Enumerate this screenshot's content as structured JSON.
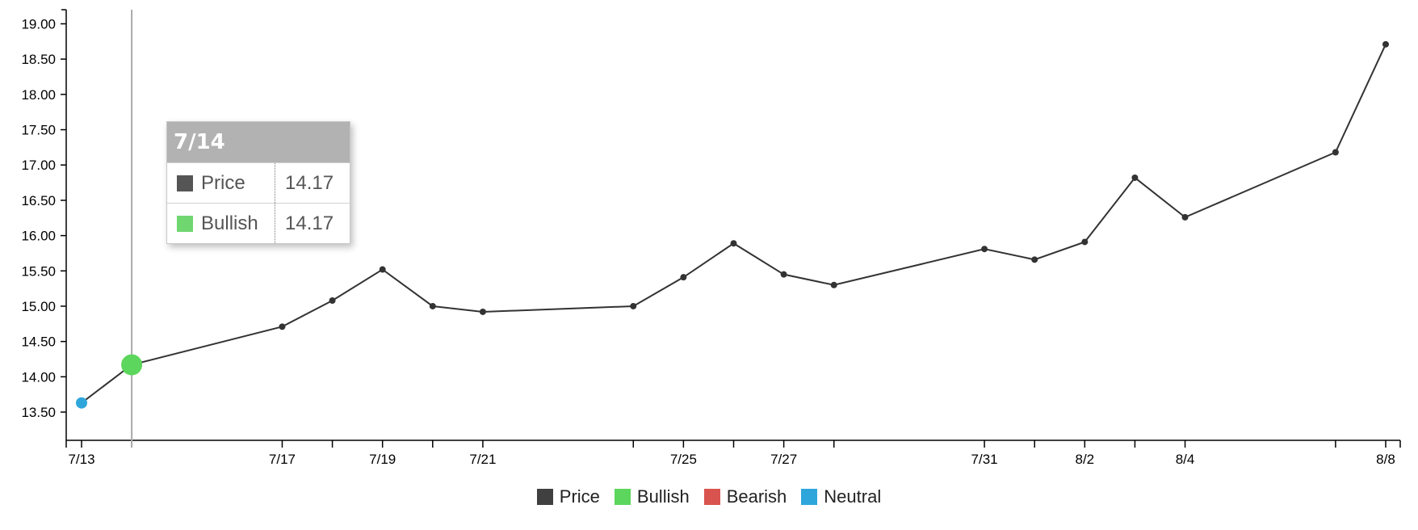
{
  "chart_data": {
    "type": "line",
    "x": [
      "7/13",
      "7/14",
      "7/17",
      "7/18",
      "7/19",
      "7/20",
      "7/21",
      "7/24",
      "7/25",
      "7/26",
      "7/27",
      "7/28",
      "7/31",
      "8/1",
      "8/2",
      "8/3",
      "8/4",
      "8/7",
      "8/8"
    ],
    "x_tick_labels": [
      "7/13",
      "7/17",
      "7/19",
      "7/21",
      "7/25",
      "7/27",
      "7/31",
      "8/2",
      "8/4",
      "8/8"
    ],
    "series": [
      {
        "name": "Price",
        "color": "#333333",
        "values": [
          13.63,
          14.17,
          14.71,
          15.08,
          15.52,
          15.0,
          14.92,
          15.0,
          15.41,
          15.89,
          15.45,
          15.3,
          15.81,
          15.66,
          15.91,
          16.82,
          16.26,
          17.18,
          18.71
        ]
      }
    ],
    "sentiment_points": [
      {
        "x": "7/13",
        "y": 13.63,
        "sentiment": "Neutral"
      },
      {
        "x": "7/14",
        "y": 14.17,
        "sentiment": "Bullish"
      }
    ],
    "y_ticks": [
      "13.50",
      "14.00",
      "14.50",
      "15.00",
      "15.50",
      "16.00",
      "16.50",
      "17.00",
      "17.50",
      "18.00",
      "18.50",
      "19.00"
    ],
    "ylim": [
      13.1,
      19.2
    ],
    "grid": false,
    "legend_placement": "bottom-center"
  },
  "legend": [
    {
      "label": "Price",
      "color": "#404040"
    },
    {
      "label": "Bullish",
      "color": "#5cd65c"
    },
    {
      "label": "Bearish",
      "color": "#d9534f"
    },
    {
      "label": "Neutral",
      "color": "#2ea6dc"
    }
  ],
  "tooltip": {
    "title": "7/14",
    "rows": [
      {
        "label": "Price",
        "value": "14.17",
        "color": "#555555"
      },
      {
        "label": "Bullish",
        "value": "14.17",
        "color": "#70d670"
      }
    ]
  },
  "colors": {
    "line": "#333333",
    "bullish": "#5cd65c",
    "neutral": "#2ea6dc",
    "cursor": "#aaaaaa"
  }
}
